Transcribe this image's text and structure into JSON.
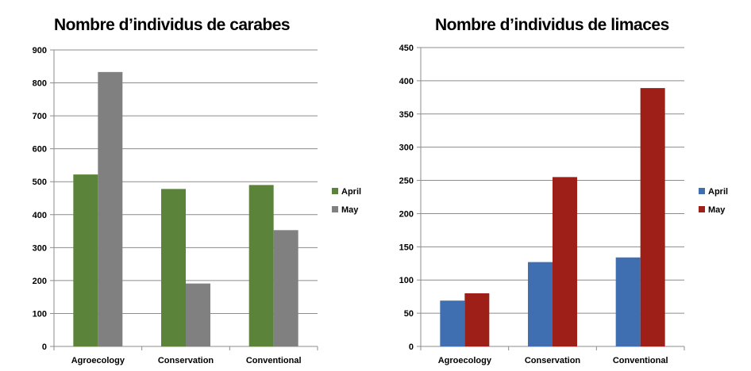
{
  "chart_data": [
    {
      "type": "bar",
      "title": "Nombre d’individus de carabes",
      "categories": [
        "Agroecology",
        "Conservation",
        "Conventional"
      ],
      "series": [
        {
          "name": "April",
          "values": [
            522,
            478,
            490
          ],
          "color": "#5b843a"
        },
        {
          "name": "May",
          "values": [
            833,
            191,
            353
          ],
          "color": "#808080"
        }
      ],
      "ylim": [
        0,
        900
      ],
      "yticks": [
        0,
        100,
        200,
        300,
        400,
        500,
        600,
        700,
        800,
        900
      ],
      "grid": true,
      "legend": "right"
    },
    {
      "type": "bar",
      "title": "Nombre d’individus de limaces",
      "categories": [
        "Agroecology",
        "Conservation",
        "Conventional"
      ],
      "series": [
        {
          "name": "April",
          "values": [
            69,
            127,
            134
          ],
          "color": "#3f6fb0"
        },
        {
          "name": "May",
          "values": [
            80,
            255,
            389
          ],
          "color": "#9e1f18"
        }
      ],
      "ylim": [
        0,
        450
      ],
      "yticks": [
        0,
        50,
        100,
        150,
        200,
        250,
        300,
        350,
        400,
        450
      ],
      "grid": true,
      "legend": "right"
    }
  ]
}
